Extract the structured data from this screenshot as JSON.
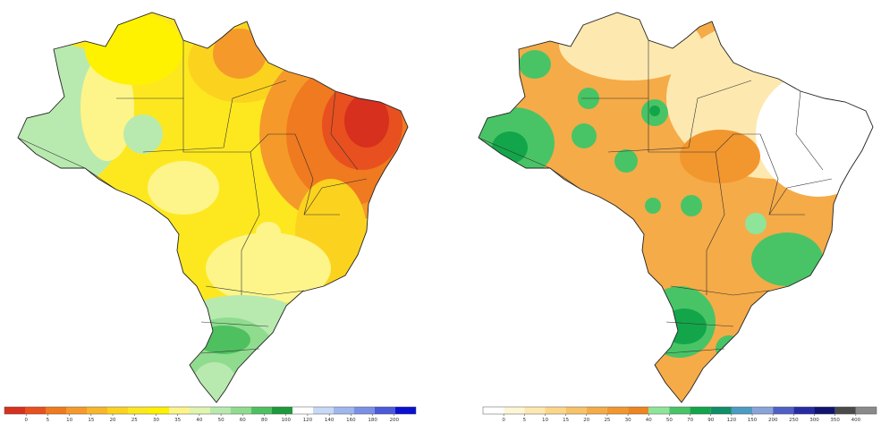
{
  "left_map": {
    "legend": {
      "ticks": [
        "0",
        "5",
        "10",
        "15",
        "20",
        "25",
        "30",
        "35",
        "40",
        "50",
        "60",
        "80",
        "100",
        "120",
        "140",
        "160",
        "180",
        "200"
      ],
      "colors": [
        "#d7301f",
        "#e8501f",
        "#f07a1f",
        "#f59a2a",
        "#f8b62a",
        "#fbd31f",
        "#fde820",
        "#fff200",
        "#fdf58a",
        "#dff5b0",
        "#b8eab0",
        "#8fdc8f",
        "#4fc060",
        "#1e9a3c",
        "#ffffff",
        "#c8d8f5",
        "#9fb6ee",
        "#7a90e6",
        "#4a5ad8",
        "#0a10d0"
      ]
    }
  },
  "right_map": {
    "legend": {
      "ticks": [
        "0",
        "5",
        "10",
        "15",
        "20",
        "25",
        "30",
        "40",
        "50",
        "70",
        "90",
        "120",
        "150",
        "200",
        "250",
        "300",
        "350",
        "400"
      ],
      "colors": [
        "#ffffff",
        "#fff6d6",
        "#fde9b0",
        "#fbd68a",
        "#f7c268",
        "#f5ab48",
        "#f2962e",
        "#ee8520",
        "#8ee59a",
        "#48c466",
        "#13a54a",
        "#0f8f66",
        "#4c9bc2",
        "#88a4d8",
        "#4f5fc4",
        "#262ca4",
        "#10146e",
        "#4a4a4a",
        "#8a8a8a"
      ]
    }
  }
}
